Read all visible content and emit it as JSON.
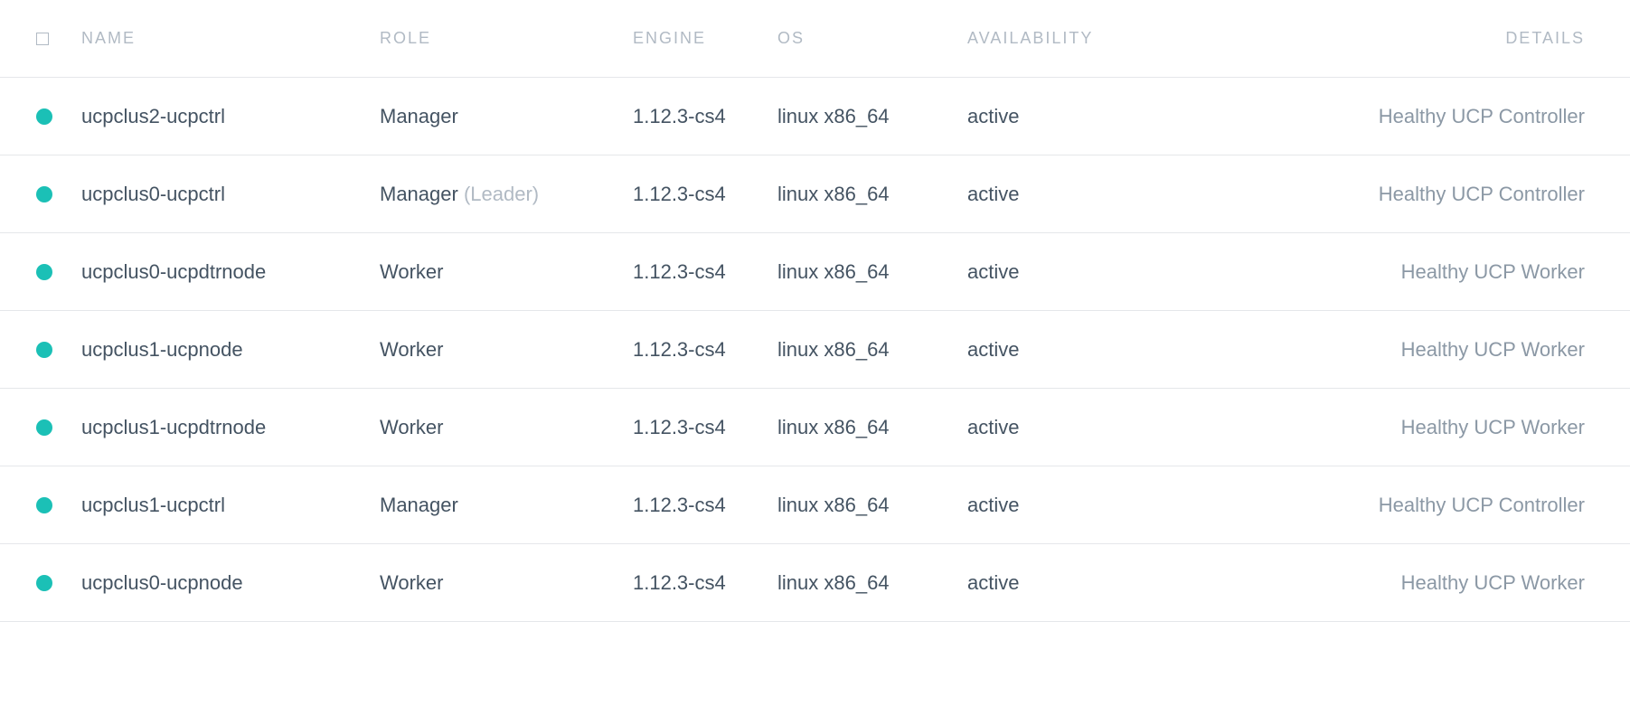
{
  "colors": {
    "status_dot": "#1bc0b6",
    "header_text": "#b1bac4",
    "body_text": "#445362",
    "muted_text": "#8b98a5",
    "role_suffix": "#b1bac4",
    "row_border": "#e5e7ea",
    "background": "#ffffff"
  },
  "table": {
    "columns": {
      "name": "NAME",
      "role": "ROLE",
      "engine": "ENGINE",
      "os": "OS",
      "availability": "AVAILABILITY",
      "details": "DETAILS"
    },
    "rows": [
      {
        "name": "ucpclus2-ucpctrl",
        "role": "Manager",
        "role_suffix": "",
        "engine": "1.12.3-cs4",
        "os": "linux x86_64",
        "availability": "active",
        "details": "Healthy UCP Controller"
      },
      {
        "name": "ucpclus0-ucpctrl",
        "role": "Manager",
        "role_suffix": " (Leader)",
        "engine": "1.12.3-cs4",
        "os": "linux x86_64",
        "availability": "active",
        "details": "Healthy UCP Controller"
      },
      {
        "name": "ucpclus0-ucpdtrnode",
        "role": "Worker",
        "role_suffix": "",
        "engine": "1.12.3-cs4",
        "os": "linux x86_64",
        "availability": "active",
        "details": "Healthy UCP Worker"
      },
      {
        "name": "ucpclus1-ucpnode",
        "role": "Worker",
        "role_suffix": "",
        "engine": "1.12.3-cs4",
        "os": "linux x86_64",
        "availability": "active",
        "details": "Healthy UCP Worker"
      },
      {
        "name": "ucpclus1-ucpdtrnode",
        "role": "Worker",
        "role_suffix": "",
        "engine": "1.12.3-cs4",
        "os": "linux x86_64",
        "availability": "active",
        "details": "Healthy UCP Worker"
      },
      {
        "name": "ucpclus1-ucpctrl",
        "role": "Manager",
        "role_suffix": "",
        "engine": "1.12.3-cs4",
        "os": "linux x86_64",
        "availability": "active",
        "details": "Healthy UCP Controller"
      },
      {
        "name": "ucpclus0-ucpnode",
        "role": "Worker",
        "role_suffix": "",
        "engine": "1.12.3-cs4",
        "os": "linux x86_64",
        "availability": "active",
        "details": "Healthy UCP Worker"
      }
    ]
  }
}
